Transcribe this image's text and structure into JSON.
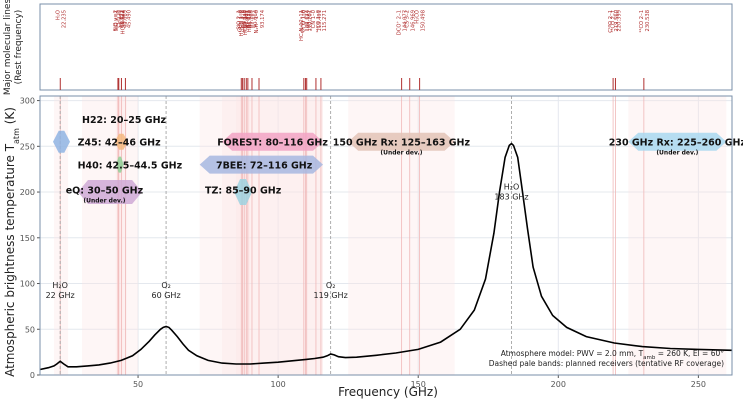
{
  "chart_data": [
    {
      "type": "line-annotations",
      "title": "",
      "ylabel": "Major molecular lines\n(Rest frequency)",
      "x_range": [
        15,
        262
      ],
      "lines": [
        {
          "name": "H₂O",
          "freq": "22.235",
          "x": 22.235
        },
        {
          "name": "SiO v=2",
          "freq": "42.821",
          "x": 42.821
        },
        {
          "name": "SiO v=1",
          "freq": "43.122",
          "x": 43.122
        },
        {
          "name": "CH₃OH",
          "freq": "44.069",
          "x": 44.069
        },
        {
          "name": "HC₃N 5–4",
          "freq": "45.490",
          "x": 45.49
        },
        {
          "name": "SiO 2–1",
          "freq": "86.847",
          "x": 86.847
        },
        {
          "name": "H¹³CN 1–0",
          "freq": "87.891",
          "x": 87.891
        },
        {
          "name": "CCH 1–0",
          "freq": "87.317",
          "x": 87.317
        },
        {
          "name": "HCN 1–0",
          "freq": "88.632",
          "x": 88.632
        },
        {
          "name": "HCO⁺ 1–0",
          "freq": "89.189",
          "x": 89.189
        },
        {
          "name": "HNC 1–0",
          "freq": "90.664",
          "x": 90.664
        },
        {
          "name": "N₂H⁺ 1–0",
          "freq": "93.174",
          "x": 93.174
        },
        {
          "name": "HC₃N 12–11",
          "freq": "109.174",
          "x": 109.174
        },
        {
          "name": "C¹⁸O 1–0",
          "freq": "109.782",
          "x": 109.782
        },
        {
          "name": "¹³CO 1–0",
          "freq": "110.201",
          "x": 110.201
        },
        {
          "name": "CN 1–0",
          "freq": "113.491",
          "x": 113.491
        },
        {
          "name": "¹²CO 1–0",
          "freq": "115.271",
          "x": 115.271
        },
        {
          "name": "DCO⁺ 2–1",
          "freq": "144.077",
          "x": 144.077
        },
        {
          "name": "CS 3–2",
          "freq": "146.969",
          "x": 146.969
        },
        {
          "name": "H₂CO",
          "freq": "150.498",
          "x": 150.498
        },
        {
          "name": "C¹⁸O 2–1",
          "freq": "219.560",
          "x": 219.56
        },
        {
          "name": "¹³CO 2–1",
          "freq": "220.399",
          "x": 220.399
        },
        {
          "name": "¹²CO 2–1",
          "freq": "230.538",
          "x": 230.538
        }
      ]
    },
    {
      "type": "line",
      "xlabel": "Frequency (GHz)",
      "ylabel": "Atmospheric brightness temperature T",
      "ylabel_sub": "atm",
      "ylabel_unit": "(K)",
      "xlim": [
        15,
        262
      ],
      "ylim": [
        0,
        305
      ],
      "xticks": [
        50,
        100,
        150,
        200,
        250
      ],
      "yticks": [
        0,
        50,
        100,
        150,
        200,
        250,
        300
      ],
      "grid": true,
      "series": [
        {
          "x": [
            15,
            18,
            20,
            21,
            22.2,
            23.5,
            25,
            28,
            32,
            36,
            40,
            44,
            48,
            51,
            54,
            56,
            58,
            59,
            60,
            61,
            62,
            64,
            66,
            68,
            71,
            75,
            80,
            85,
            90,
            95,
            100,
            105,
            110,
            113,
            116,
            117.5,
            118.75,
            120,
            121.5,
            124,
            128,
            135,
            142,
            150,
            158,
            165,
            170,
            174,
            177,
            179,
            181,
            182.5,
            183.3,
            184,
            185.5,
            187,
            189,
            191,
            194,
            198,
            203,
            210,
            220,
            230,
            240,
            250,
            262
          ],
          "y": [
            6,
            8,
            10,
            12,
            15,
            12,
            9,
            9,
            10,
            11,
            13,
            16,
            21,
            28,
            37,
            44,
            50,
            52,
            53,
            52,
            49,
            42,
            34,
            27,
            21,
            16,
            13,
            12,
            12,
            13,
            14,
            15.5,
            17,
            18,
            19.5,
            21,
            23,
            22,
            20,
            19,
            19.5,
            21.5,
            24,
            28,
            36,
            50,
            71,
            105,
            155,
            200,
            238,
            251,
            253,
            251,
            238,
            205,
            160,
            118,
            86,
            65,
            52,
            42,
            35,
            31,
            29,
            28,
            27
          ]
        }
      ],
      "vlines": [
        {
          "label": "H₂O\n22 GHz",
          "x": 22.2,
          "y": 15
        },
        {
          "label": "O₂\n60 GHz",
          "x": 60,
          "y": 53
        },
        {
          "label": "O₂\n119 GHz",
          "x": 118.75,
          "y": 23
        },
        {
          "label": "H₂O\n183 GHz",
          "x": 183.3,
          "y": 253
        }
      ],
      "line_annotation_top_x": [
        22.235,
        42.821,
        43.122,
        44.069,
        45.49,
        86.847,
        87.317,
        87.891,
        88.632,
        89.189,
        90.664,
        93.174,
        109.174,
        109.782,
        110.201,
        113.491,
        115.271,
        144.077,
        146.969,
        150.498,
        219.56,
        220.399,
        230.538
      ],
      "bands": [
        {
          "label": "H22: 20–25 GHz",
          "lo": 20,
          "hi": 25,
          "y": 255,
          "color": "#8fb4e3",
          "label_x": 31,
          "label_y": 280
        },
        {
          "label": "Z45: 42–46 GHz",
          "lo": 42,
          "hi": 46,
          "y": 255,
          "color": "#f4b97f",
          "label_x": 45,
          "label_y": 255
        },
        {
          "label": "H40: 42.5–44.5 GHz",
          "lo": 42.5,
          "hi": 44.5,
          "y": 230,
          "color": "#8fcf95",
          "label_x": 45,
          "label_y": 230
        },
        {
          "label": "eQ: 30–50 GHz",
          "lo": 30,
          "hi": 50,
          "y": 200,
          "color": "#cfa9d6",
          "label_x": 38,
          "label_y": 203,
          "note": "(Under dev.)"
        },
        {
          "label": "FOREST: 80–116 GHz",
          "lo": 80,
          "hi": 116,
          "y": 255,
          "color": "#f2a3c4",
          "label_x": 98,
          "label_y": 255
        },
        {
          "label": "7BEE: 72–116 GHz",
          "lo": 72,
          "hi": 116,
          "y": 230,
          "color": "#a7b7e0",
          "label_x": 95,
          "label_y": 230
        },
        {
          "label": "TZ: 85–90 GHz",
          "lo": 85,
          "hi": 90,
          "y": 200,
          "color": "#9ed2e0",
          "label_x": 87.5,
          "label_y": 203
        },
        {
          "label": "150 GHz Rx: 125–163 GHz",
          "lo": 125,
          "hi": 163,
          "y": 255,
          "color": "#e3c3b6",
          "label_x": 144,
          "label_y": 255,
          "note": "(Under dev.)"
        },
        {
          "label": "230 GHz Rx: 225–260 GHz",
          "lo": 225,
          "hi": 260,
          "y": 255,
          "color": "#a9d8f0",
          "label_x": 242.5,
          "label_y": 255,
          "note": "(Under dev.)"
        }
      ],
      "annotations": [
        "Atmosphere model: PWV = 2.0 mm, T",
        "amb",
        " = 260 K, El = 60°",
        "Dashed pale bands: planned receivers (tentative RF coverage)"
      ]
    }
  ],
  "colors": {
    "frame": "#7a8fa8",
    "curve": "#000000",
    "line_marker": "#b03030",
    "band_fill": "#fbe4e4",
    "grid": "#e4e8ee"
  }
}
